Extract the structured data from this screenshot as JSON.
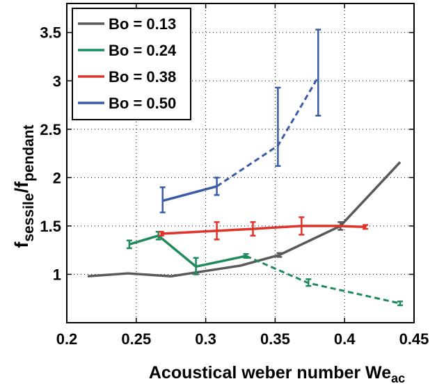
{
  "chart_data": {
    "type": "line",
    "title": "",
    "xlabel": "Acoustical weber number We",
    "xlabel_sub": "ac",
    "ylabel": {
      "f1": "f",
      "s1": "sessile",
      "slash": "/",
      "f2": "f",
      "s2": "pendant"
    },
    "xlim": [
      0.2,
      0.45
    ],
    "ylim": [
      0.5,
      3.8
    ],
    "xticks": [
      0.2,
      0.25,
      0.3,
      0.35,
      0.4,
      0.45
    ],
    "xtick_labels": [
      "0.2",
      "0.25",
      "0.3",
      "0.35",
      "0.4",
      "0.45"
    ],
    "yticks": [
      1,
      1.5,
      2,
      2.5,
      3,
      3.5
    ],
    "ytick_labels": [
      "1",
      "1.5",
      "2",
      "2.5",
      "3",
      "3.5"
    ],
    "grid": true,
    "grid_style": "dotted",
    "legend_position": "top-left",
    "series": [
      {
        "name": "Bo = 0.13",
        "color": "#58595b",
        "solid": [
          {
            "x": 0.215,
            "y": 0.98
          },
          {
            "x": 0.244,
            "y": 1.01
          },
          {
            "x": 0.275,
            "y": 0.98
          },
          {
            "x": 0.325,
            "y": 1.09
          },
          {
            "x": 0.353,
            "y": 1.2
          },
          {
            "x": 0.397,
            "y": 1.5
          },
          {
            "x": 0.44,
            "y": 2.16
          }
        ],
        "dashed": [],
        "errorbars": [
          {
            "x": 0.353,
            "lo": 1.18,
            "hi": 1.22
          },
          {
            "x": 0.397,
            "lo": 1.46,
            "hi": 1.54
          }
        ]
      },
      {
        "name": "Bo = 0.24",
        "color": "#1f8a5b",
        "solid": [
          {
            "x": 0.245,
            "y": 1.31
          },
          {
            "x": 0.266,
            "y": 1.4
          },
          {
            "x": 0.293,
            "y": 1.08
          },
          {
            "x": 0.329,
            "y": 1.19
          }
        ],
        "dashed": [
          {
            "x": 0.329,
            "y": 1.19
          },
          {
            "x": 0.374,
            "y": 0.91
          },
          {
            "x": 0.44,
            "y": 0.7
          }
        ],
        "errorbars": [
          {
            "x": 0.245,
            "lo": 1.27,
            "hi": 1.35
          },
          {
            "x": 0.266,
            "lo": 1.36,
            "hi": 1.44
          },
          {
            "x": 0.293,
            "lo": 1.0,
            "hi": 1.17
          },
          {
            "x": 0.329,
            "lo": 1.17,
            "hi": 1.21
          },
          {
            "x": 0.374,
            "lo": 0.88,
            "hi": 0.95
          },
          {
            "x": 0.44,
            "lo": 0.68,
            "hi": 0.72
          }
        ]
      },
      {
        "name": "Bo = 0.38",
        "color": "#e0332a",
        "solid": [
          {
            "x": 0.268,
            "y": 1.42
          },
          {
            "x": 0.308,
            "y": 1.45
          },
          {
            "x": 0.334,
            "y": 1.47
          },
          {
            "x": 0.369,
            "y": 1.5
          },
          {
            "x": 0.395,
            "y": 1.5
          },
          {
            "x": 0.415,
            "y": 1.49
          }
        ],
        "dashed": [],
        "errorbars": [
          {
            "x": 0.268,
            "lo": 1.4,
            "hi": 1.44
          },
          {
            "x": 0.308,
            "lo": 1.36,
            "hi": 1.54
          },
          {
            "x": 0.334,
            "lo": 1.4,
            "hi": 1.54
          },
          {
            "x": 0.369,
            "lo": 1.41,
            "hi": 1.59
          },
          {
            "x": 0.415,
            "lo": 1.47,
            "hi": 1.51
          }
        ]
      },
      {
        "name": "Bo = 0.50",
        "color": "#3a5ba8",
        "solid": [
          {
            "x": 0.269,
            "y": 1.76
          },
          {
            "x": 0.308,
            "y": 1.91
          }
        ],
        "dashed": [
          {
            "x": 0.308,
            "y": 1.91
          },
          {
            "x": 0.352,
            "y": 2.33
          },
          {
            "x": 0.381,
            "y": 3.04
          }
        ],
        "errorbars": [
          {
            "x": 0.269,
            "lo": 1.64,
            "hi": 1.9
          },
          {
            "x": 0.308,
            "lo": 1.82,
            "hi": 2.0
          },
          {
            "x": 0.352,
            "lo": 2.12,
            "hi": 2.93
          },
          {
            "x": 0.381,
            "lo": 2.64,
            "hi": 3.53
          }
        ]
      }
    ]
  }
}
